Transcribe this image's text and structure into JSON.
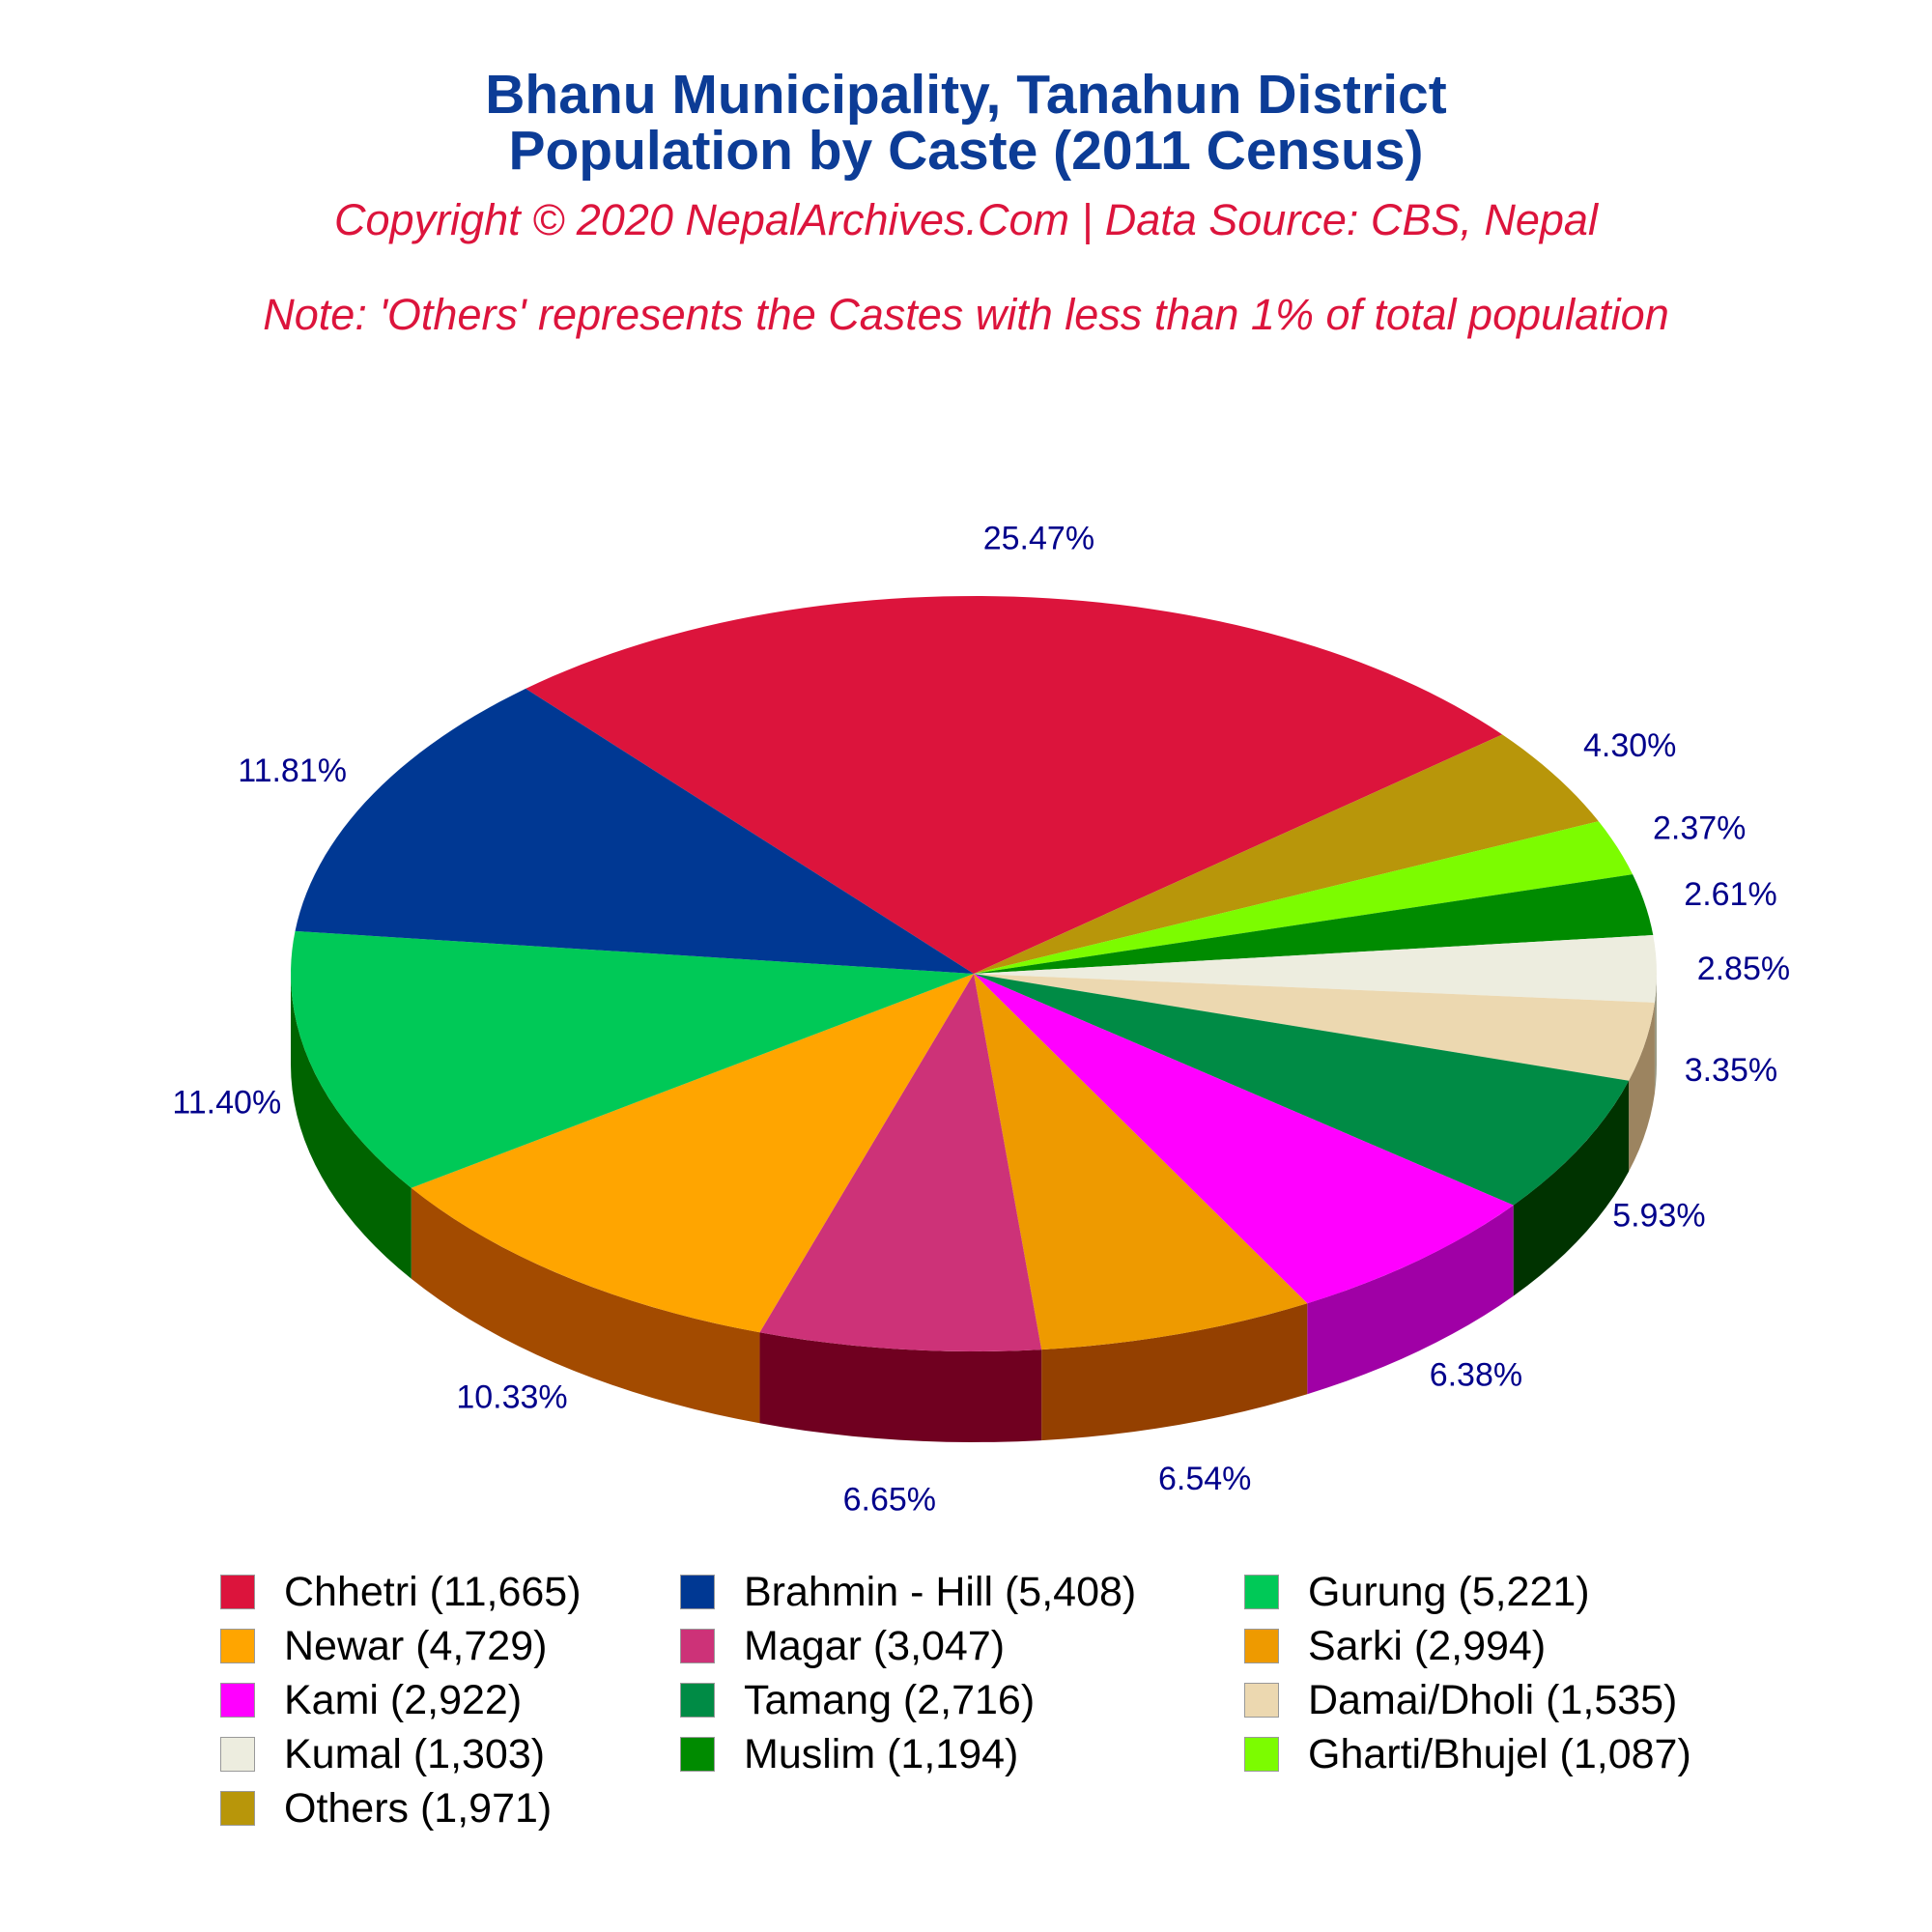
{
  "header": {
    "title_line1": "Bhanu Municipality, Tanahun District",
    "title_line2": "Population by Caste (2011 Census)",
    "copyright": "Copyright © 2020 NepalArchives.Com | Data Source: CBS, Nepal",
    "note": "Note: 'Others' represents the Castes with less than 1% of total population"
  },
  "chart_data": {
    "type": "pie",
    "style": "3d",
    "direction": "clockwise",
    "legend_position": "bottom",
    "slices": [
      {
        "name": "Chhetri",
        "population": 11665,
        "percent": 25.47,
        "label": "25.47%",
        "legend": "Chhetri (11,665)",
        "color": "#dc143c",
        "side_color": "#8b0a24"
      },
      {
        "name": "Others",
        "population": 1971,
        "percent": 4.3,
        "label": "4.30%",
        "legend": "Others (1,971)",
        "color": "#b8960a",
        "side_color": "#7a6308"
      },
      {
        "name": "Gharti/Bhujel",
        "population": 1087,
        "percent": 2.37,
        "label": "2.37%",
        "legend": "Gharti/Bhujel (1,087)",
        "color": "#7cfc00",
        "side_color": "#4a9600"
      },
      {
        "name": "Muslim",
        "population": 1194,
        "percent": 2.61,
        "label": "2.61%",
        "legend": "Muslim (1,194)",
        "color": "#008b00",
        "side_color": "#004d00"
      },
      {
        "name": "Kumal",
        "population": 1303,
        "percent": 2.85,
        "label": "2.85%",
        "legend": "Kumal (1,303)",
        "color": "#ededdf",
        "side_color": "#9a9a85"
      },
      {
        "name": "Damai/Dholi",
        "population": 1535,
        "percent": 3.35,
        "label": "3.35%",
        "legend": "Damai/Dholi (1,535)",
        "color": "#ecd8b0",
        "side_color": "#9c8460"
      },
      {
        "name": "Tamang",
        "population": 2716,
        "percent": 5.93,
        "label": "5.93%",
        "legend": "Tamang (2,716)",
        "color": "#008b45",
        "side_color": "#003300"
      },
      {
        "name": "Kami",
        "population": 2922,
        "percent": 6.38,
        "label": "6.38%",
        "legend": "Kami (2,922)",
        "color": "#ff00ff",
        "side_color": "#a000a6"
      },
      {
        "name": "Sarki",
        "population": 2994,
        "percent": 6.54,
        "label": "6.54%",
        "legend": "Sarki (2,994)",
        "color": "#ee9a00",
        "side_color": "#944000"
      },
      {
        "name": "Magar",
        "population": 3047,
        "percent": 6.65,
        "label": "6.65%",
        "legend": "Magar (3,047)",
        "color": "#cd3278",
        "side_color": "#700020"
      },
      {
        "name": "Newar",
        "population": 4729,
        "percent": 10.33,
        "label": "10.33%",
        "legend": "Newar (4,729)",
        "color": "#ffa500",
        "side_color": "#a34b00"
      },
      {
        "name": "Gurung",
        "population": 5221,
        "percent": 11.4,
        "label": "11.40%",
        "legend": "Gurung (5,221)",
        "color": "#00c957",
        "side_color": "#006400"
      },
      {
        "name": "Brahmin - Hill",
        "population": 5408,
        "percent": 11.81,
        "label": "11.81%",
        "legend": "Brahmin - Hill (5,408)",
        "color": "#003893",
        "side_color": "#001f52"
      }
    ],
    "legend_order": [
      "Chhetri",
      "Brahmin - Hill",
      "Gurung",
      "Newar",
      "Magar",
      "Sarki",
      "Kami",
      "Tamang",
      "Damai/Dholi",
      "Kumal",
      "Muslim",
      "Gharti/Bhujel",
      "Others"
    ]
  }
}
